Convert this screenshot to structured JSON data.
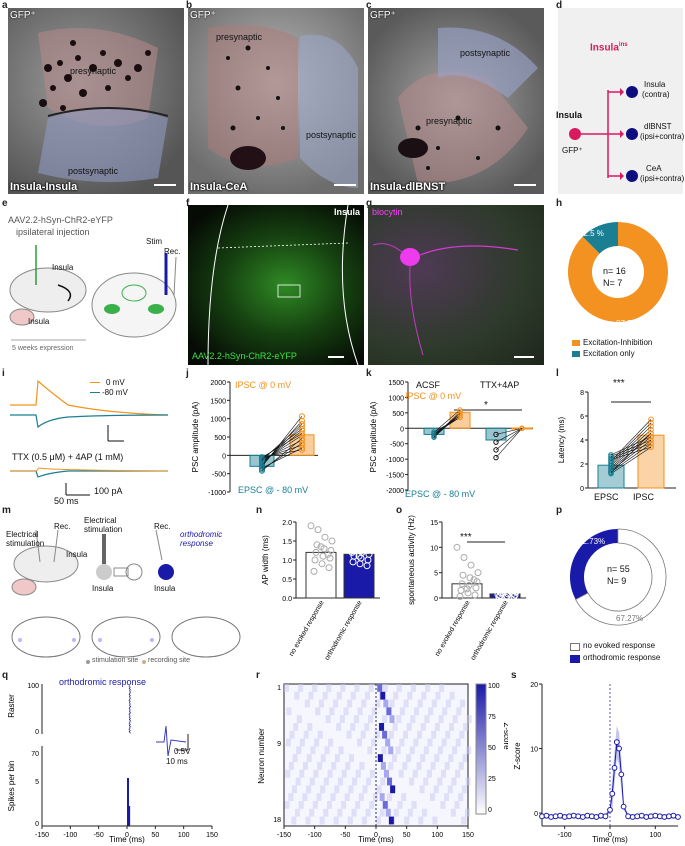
{
  "panel_letters": [
    "a",
    "b",
    "c",
    "d",
    "e",
    "f",
    "g",
    "h",
    "i",
    "j",
    "k",
    "l",
    "m",
    "n",
    "o",
    "p",
    "q",
    "r",
    "s"
  ],
  "em": [
    {
      "gfp": "GFP⁺",
      "pre": "presynaptic",
      "post": "postsynaptic",
      "caption": "Insula-Insula"
    },
    {
      "gfp": "GFP⁺",
      "pre": "presynaptic",
      "post": "postsynaptic",
      "caption": "Insula-CeA"
    },
    {
      "gfp": "GFP⁺",
      "pre": "presynaptic",
      "post": "postsynaptic",
      "caption": "Insula-dlBNST"
    }
  ],
  "schematic_d": {
    "title": "Insula",
    "title_sup": "ins",
    "source": "Insula",
    "source_sub": "GFP⁺",
    "targets": [
      {
        "name": "Insula",
        "sub": "(contra)"
      },
      {
        "name": "dlBNST",
        "sub": "(ipsi+contra)"
      },
      {
        "name": "CeA",
        "sub": "(ipsi+contra)"
      }
    ],
    "colors": {
      "source": "#d81b60",
      "target": "#0d0d80"
    }
  },
  "panel_e": {
    "line1": "AAV2.2-hSyn-ChR2-eYFP",
    "line2": "ipsilateral injection",
    "insula_top": "Insula",
    "insula_bottom": "Insula",
    "expr": "5 weeks expression",
    "stim": "Stim",
    "rec": "Rec."
  },
  "panel_f": {
    "label": "Insula",
    "virus": "AAV2.2-hSyn-ChR2-eYFP"
  },
  "panel_g": {
    "label": "biocytin"
  },
  "panel_h": {
    "chart_data": {
      "type": "pie",
      "slices": [
        {
          "label": "Excitation-Inhibition",
          "value": 87.5,
          "color": "#f39220"
        },
        {
          "label": "Excitation only",
          "value": 12.5,
          "color": "#1a7f93"
        }
      ]
    },
    "center1": "n= 16",
    "center2": "N= 7",
    "pct_big": "87.5%",
    "pct_small": "12.5 %"
  },
  "panel_i": {
    "legend": [
      "0 mV",
      "-80 mV"
    ],
    "ttx": "TTX (0.5 μM) + 4AP (1 mM)",
    "scale_y": "100 pA",
    "scale_x": "50 ms"
  },
  "panel_j": {
    "ylabel": "PSC amplitude (pA)",
    "ipsc": "IPSC @ 0 mV",
    "epsc": "EPSC @ - 80 mV",
    "yticks": [
      "2000",
      "1500",
      "1000",
      "500",
      "0",
      "-500",
      "-1000"
    ],
    "chart_data": {
      "type": "bar",
      "categories": [
        "EPSC @ -80 mV",
        "IPSC @ 0 mV"
      ],
      "values": [
        -300,
        560
      ],
      "ylim": [
        -1000,
        2000
      ]
    }
  },
  "panel_k": {
    "ylabel": "PSC amplitude (pA)",
    "acsf": "ACSF",
    "ttx": "TTX+4AP",
    "ipsc": "IPSC @ 0 mV",
    "epsc": "EPSC @ - 80 mV",
    "star": "*",
    "yticks": [
      "1500",
      "1000",
      "500",
      "0",
      "-500",
      "-1000",
      "-1500",
      "-2000"
    ],
    "chart_data": {
      "type": "bar",
      "series": [
        {
          "name": "ACSF",
          "values": [
            -200,
            520
          ]
        },
        {
          "name": "TTX+4AP",
          "values": [
            -380,
            10
          ]
        }
      ],
      "categories": [
        "EPSC",
        "IPSC"
      ],
      "ylim": [
        -2000,
        1500
      ]
    }
  },
  "panel_l": {
    "ylabel": "Latency (ms)",
    "xt": [
      "EPSC",
      "IPSC"
    ],
    "star": "***",
    "yticks": [
      "8",
      "6",
      "4",
      "2",
      "0"
    ],
    "chart_data": {
      "type": "bar",
      "categories": [
        "EPSC",
        "IPSC"
      ],
      "values": [
        1.9,
        4.4
      ],
      "ylim": [
        0,
        8
      ]
    }
  },
  "panel_m": {
    "elec": "Electrical",
    "stim": "stimulation",
    "rec": "Rec.",
    "insula": "Insula",
    "elec2": "Electrical",
    "stim2": "stimulation",
    "rec2": "Rec.",
    "ortho": "orthodromic",
    "resp": "response",
    "ins_a": "Insula",
    "ins_b": "Insula",
    "legend1": "stimulation site",
    "legend2": "recording site"
  },
  "panel_n": {
    "ylabel": "AP width (ms)",
    "xt": [
      "no evoked response",
      "orthodromic response"
    ],
    "yticks": [
      "2.0",
      "1.5",
      "1.0",
      "0.5",
      "0.0"
    ],
    "chart_data": {
      "type": "bar",
      "categories": [
        "no evoked response",
        "orthodromic response"
      ],
      "values": [
        1.2,
        1.15
      ],
      "ylim": [
        0,
        2
      ]
    }
  },
  "panel_o": {
    "ylabel": "spontaneous activity (Hz)",
    "xt": [
      "no evoked response",
      "orthodromic response"
    ],
    "star": "***",
    "yticks": [
      "15",
      "10",
      "5",
      "0"
    ],
    "chart_data": {
      "type": "bar",
      "categories": [
        "no evoked response",
        "orthodromic response"
      ],
      "values": [
        2.8,
        0.8
      ],
      "ylim": [
        0,
        15
      ]
    }
  },
  "panel_p": {
    "chart_data": {
      "type": "pie",
      "slices": [
        {
          "label": "no evoked response",
          "value": 67.27,
          "color": "#ffffff"
        },
        {
          "label": "orthodromic response",
          "value": 32.73,
          "color": "#1a1aa8"
        }
      ]
    },
    "center1": "n= 55",
    "center2": "N= 9",
    "pct_small": "67.27%",
    "pct_big": "32.73%"
  },
  "panel_q": {
    "title": "orthodromic response",
    "raster": "Raster",
    "ylabel": "Spikes per bin",
    "xlabel": "Time (ms)",
    "xticks": [
      "-150",
      "-100",
      "-50",
      "0",
      "50",
      "100",
      "150"
    ],
    "yticks_raster": [
      "100",
      "0"
    ],
    "yticks_hist": [
      "70",
      "5",
      "0"
    ],
    "scale_v": "0.5V",
    "scale_t": "10 ms"
  },
  "panel_r": {
    "ylabel": "Neuron number",
    "xlabel": "Time (ms)",
    "cbar": "Z-score",
    "xticks": [
      "-150",
      "-100",
      "-50",
      "0",
      "50",
      "100",
      "150"
    ],
    "yticks": [
      "1",
      "9",
      "18"
    ],
    "cticks": [
      "100",
      "75",
      "50",
      "25",
      "0"
    ]
  },
  "panel_s": {
    "ylabel": "Z-score",
    "xlabel": "Time (ms)",
    "xticks": [
      "-100",
      "0",
      "100"
    ],
    "yticks": [
      "20",
      "10",
      "0"
    ],
    "chart_data": {
      "type": "line",
      "x": [
        -150,
        -140,
        -130,
        -120,
        -110,
        -100,
        -90,
        -80,
        -70,
        -60,
        -50,
        -40,
        -30,
        -20,
        -10,
        0,
        5,
        10,
        15,
        20,
        25,
        30,
        40,
        50,
        60,
        70,
        80,
        90,
        100,
        110,
        120,
        130,
        140,
        150
      ],
      "values": [
        -0.5,
        -0.4,
        -0.6,
        -0.5,
        -0.4,
        -0.6,
        -0.5,
        -0.4,
        -0.5,
        -0.6,
        -0.4,
        -0.5,
        -0.6,
        -0.4,
        -0.5,
        0.5,
        3,
        7,
        11,
        10,
        6,
        1,
        -0.5,
        -0.6,
        -0.5,
        -0.4,
        -0.6,
        -0.5,
        -0.4,
        -0.5,
        -0.6,
        -0.5,
        -0.4,
        -0.6
      ],
      "ylim": [
        -2,
        20
      ]
    }
  }
}
